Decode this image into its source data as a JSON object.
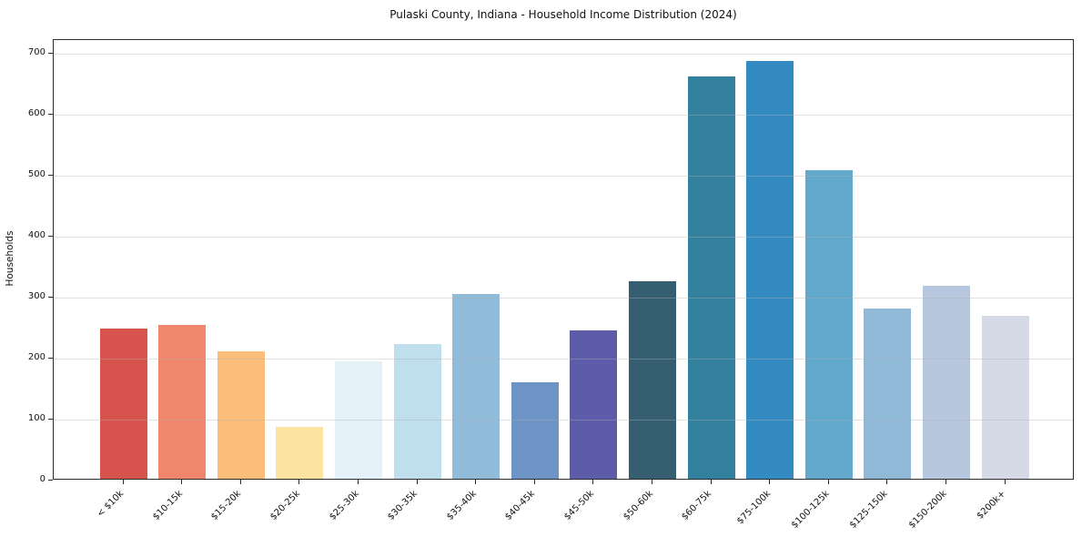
{
  "title": "Pulaski County, Indiana - Household Income Distribution (2024)",
  "chart_data": {
    "type": "bar",
    "title": "Pulaski County, Indiana - Household Income Distribution (2024)",
    "categories": [
      "< $10k",
      "$10-15k",
      "$15-20k",
      "$20-25k",
      "$25-30k",
      "$30-35k",
      "$35-40k",
      "$40-45k",
      "$45-50k",
      "$50-60k",
      "$60-75k",
      "$75-100k",
      "$100-125k",
      "$125-150k",
      "$150-200k",
      "$200k+"
    ],
    "values": [
      246,
      252,
      209,
      85,
      192,
      221,
      303,
      158,
      244,
      324,
      661,
      685,
      506,
      279,
      317,
      267
    ],
    "bar_colors": [
      "#d6534e",
      "#f0876c",
      "#fbbd7a",
      "#fde3a1",
      "#e5f1f8",
      "#c0dfec",
      "#90bcda",
      "#6e94c6",
      "#5c5ca8",
      "#355f70",
      "#337f9e",
      "#348bc1",
      "#63a8cd",
      "#90b8d7",
      "#b7c8de",
      "#d6d9e6"
    ],
    "xlabel": "",
    "ylabel": "Households",
    "ylim": [
      0,
      700
    ],
    "yticks": [
      0,
      100,
      200,
      300,
      400,
      500,
      600,
      700
    ],
    "grid": "horizontal",
    "grid_color": "#e9e9e9",
    "spine_color": "#2b2b2b",
    "legend": "none",
    "x_label_rotation_deg": 45
  }
}
